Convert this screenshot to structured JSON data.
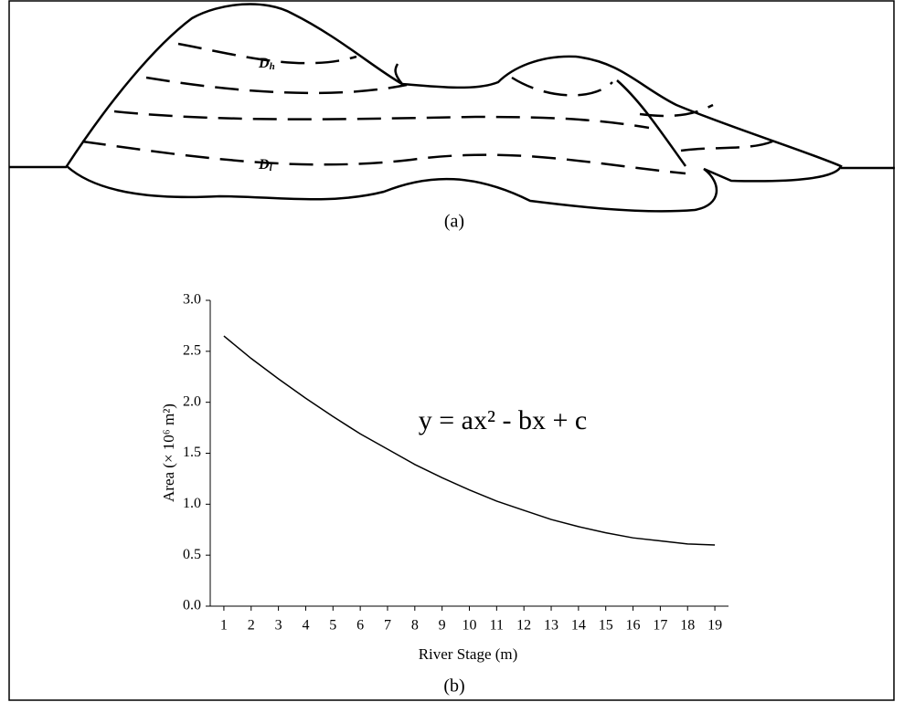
{
  "diagram": {
    "labels": [
      {
        "base": "D",
        "sub": "h"
      },
      {
        "base": "D",
        "sub": "l"
      }
    ],
    "caption": "(a)"
  },
  "chart_data": {
    "type": "line",
    "caption": "(b)",
    "xlabel": "River Stage (m)",
    "ylabel": "Area (× 10⁶ m²)",
    "annotation": "y = ax² - bx + c",
    "color": "#000000",
    "x": [
      1,
      2,
      3,
      4,
      5,
      6,
      7,
      8,
      9,
      10,
      11,
      12,
      13,
      14,
      15,
      16,
      17,
      18,
      19
    ],
    "values": [
      2.65,
      2.43,
      2.23,
      2.04,
      1.86,
      1.69,
      1.54,
      1.39,
      1.26,
      1.14,
      1.03,
      0.94,
      0.85,
      0.78,
      0.72,
      0.67,
      0.64,
      0.61,
      0.6
    ],
    "xlim": [
      0.5,
      19.5
    ],
    "xticks": [
      1,
      2,
      3,
      4,
      5,
      6,
      7,
      8,
      9,
      10,
      11,
      12,
      13,
      14,
      15,
      16,
      17,
      18,
      19
    ],
    "ylim": [
      0,
      3
    ],
    "yticks": [
      {
        "value": 0,
        "label": "0.0"
      },
      {
        "value": 0.5,
        "label": "0.5"
      },
      {
        "value": 1,
        "label": "1.0"
      },
      {
        "value": 1.5,
        "label": "1.5"
      },
      {
        "value": 2,
        "label": "2.0"
      },
      {
        "value": 2.5,
        "label": "2.5"
      },
      {
        "value": 3,
        "label": "3.0"
      }
    ]
  }
}
